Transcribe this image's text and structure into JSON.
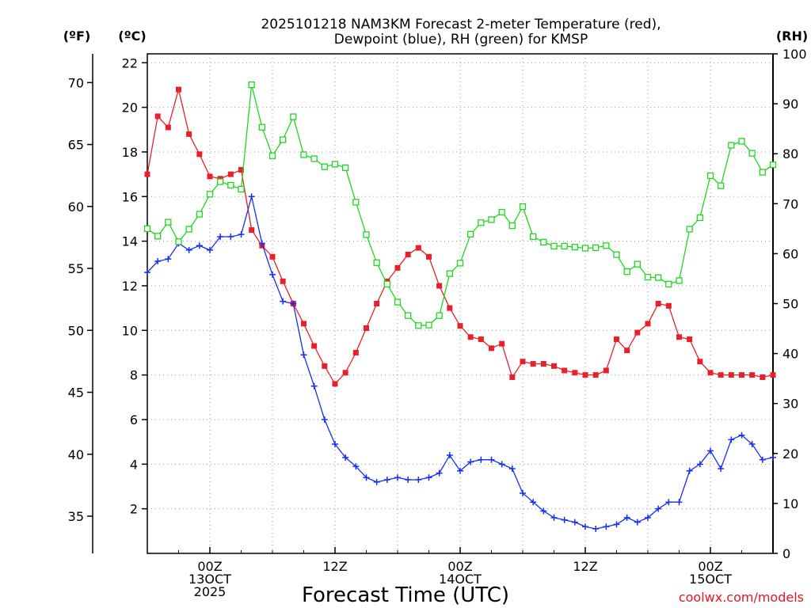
{
  "chart_data": {
    "type": "line",
    "title_line1": "2025101218 NAM3KM Forecast 2-meter Temperature (red),",
    "title_line2": "Dewpoint (blue), RH (green) for KMSP",
    "unit_f": "(ºF)",
    "unit_c": "(ºC)",
    "unit_rh": "(RH)",
    "xlabel": "Forecast Time (UTC)",
    "credit": "coolwx.com/models",
    "x_range_hours": [
      0,
      60
    ],
    "ylim_c": [
      0,
      22.4
    ],
    "ylim_rh": [
      0,
      100
    ],
    "c_ticks": [
      2,
      4,
      6,
      8,
      10,
      12,
      14,
      16,
      18,
      20,
      22
    ],
    "f_ticks": [
      35,
      40,
      45,
      50,
      55,
      60,
      65,
      70
    ],
    "rh_ticks": [
      0,
      10,
      20,
      30,
      40,
      50,
      60,
      70,
      80,
      90,
      100
    ],
    "x_ticks": [
      {
        "hour": 6,
        "lines": [
          "00Z",
          "13OCT",
          "2025"
        ]
      },
      {
        "hour": 18,
        "lines": [
          "12Z"
        ]
      },
      {
        "hour": 30,
        "lines": [
          "00Z",
          "14OCT"
        ]
      },
      {
        "hour": 42,
        "lines": [
          "12Z"
        ]
      },
      {
        "hour": 54,
        "lines": [
          "00Z",
          "15OCT"
        ]
      }
    ],
    "series": [
      {
        "name": "2-meter Temperature",
        "color": "#e8202a",
        "marker": "square-filled",
        "axis": "c",
        "values": [
          17.0,
          19.6,
          19.1,
          20.8,
          18.8,
          17.9,
          16.9,
          16.8,
          17.0,
          17.2,
          14.5,
          13.8,
          13.3,
          12.2,
          11.2,
          10.3,
          9.3,
          8.4,
          7.6,
          8.1,
          9.0,
          10.1,
          11.2,
          12.2,
          12.8,
          13.4,
          13.7,
          13.3,
          12.0,
          11.0,
          10.2,
          9.7,
          9.6,
          9.2,
          9.4,
          7.9,
          8.6,
          8.5,
          8.5,
          8.4,
          8.2,
          8.1,
          8.0,
          8.0,
          8.2,
          9.6,
          9.1,
          9.9,
          10.3,
          11.2,
          11.1,
          9.7,
          9.6,
          8.6,
          8.1,
          8.0,
          8.0,
          8.0,
          8.0,
          7.9,
          8.0
        ]
      },
      {
        "name": "Dewpoint",
        "color": "#1530f0",
        "marker": "plus",
        "axis": "c",
        "values": [
          12.6,
          13.1,
          13.2,
          13.9,
          13.6,
          13.8,
          13.6,
          14.2,
          14.2,
          14.3,
          16.0,
          13.9,
          12.5,
          11.3,
          11.2,
          8.9,
          7.5,
          6.0,
          4.9,
          4.3,
          3.9,
          3.4,
          3.2,
          3.3,
          3.4,
          3.3,
          3.3,
          3.4,
          3.6,
          4.4,
          3.7,
          4.1,
          4.2,
          4.2,
          4.0,
          3.8,
          2.7,
          2.3,
          1.9,
          1.6,
          1.5,
          1.4,
          1.2,
          1.1,
          1.2,
          1.3,
          1.6,
          1.4,
          1.6,
          2.0,
          2.3,
          2.3,
          3.7,
          4.0,
          4.6,
          3.8,
          5.1,
          5.3,
          4.9,
          4.2,
          4.3
        ]
      },
      {
        "name": "RH",
        "color": "#1ed81e",
        "marker": "square-open",
        "axis": "rh",
        "values": [
          65.0,
          63.5,
          66.3,
          62.4,
          64.9,
          67.9,
          71.9,
          74.4,
          73.7,
          72.9,
          93.8,
          85.3,
          79.6,
          82.8,
          87.4,
          79.8,
          79.0,
          77.4,
          77.9,
          77.2,
          70.3,
          63.8,
          58.2,
          53.9,
          50.3,
          47.6,
          45.6,
          45.7,
          47.6,
          56.0,
          58.1,
          63.9,
          66.2,
          66.8,
          68.3,
          65.6,
          69.4,
          63.4,
          62.3,
          61.5,
          61.5,
          61.3,
          61.1,
          61.2,
          61.6,
          59.8,
          56.4,
          57.9,
          55.3,
          55.2,
          53.9,
          54.6,
          64.9,
          67.2,
          75.6,
          73.6,
          81.7,
          82.5,
          80.1,
          76.3,
          77.8
        ]
      }
    ]
  }
}
